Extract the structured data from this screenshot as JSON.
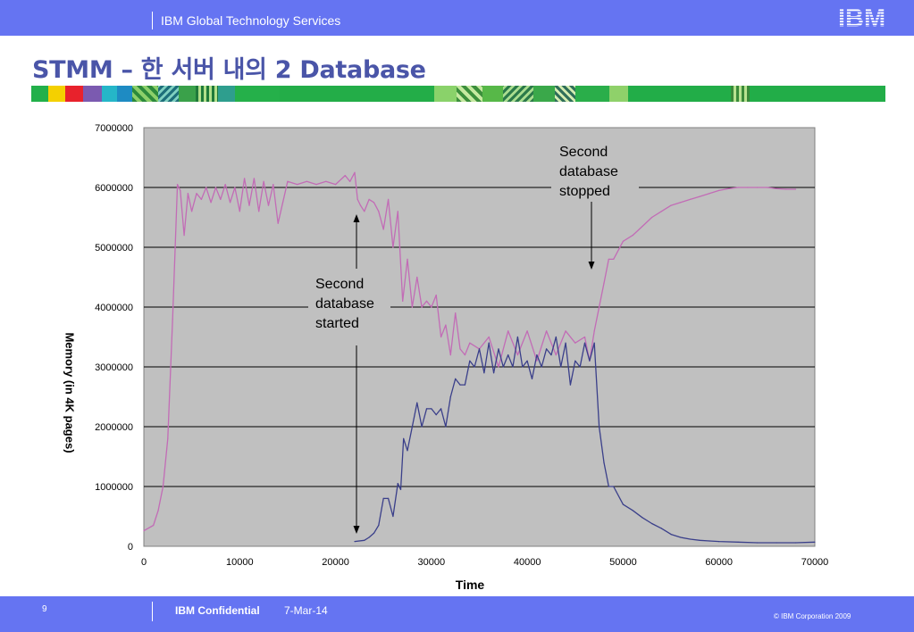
{
  "header": {
    "division": "IBM Global Technology Services",
    "logo_text": "IBM"
  },
  "slide": {
    "title": "STMM – 한 서버 내의 2 Database"
  },
  "footer": {
    "page_number": "9",
    "confidential": "IBM Confidential",
    "date": "7-Mar-14",
    "copyright": "© IBM Corporation 2009"
  },
  "colors": {
    "bar": "#6574f2",
    "title": "#4a55a8",
    "plot_bg": "#c0c0c0",
    "series1": "#c26cb6",
    "series2": "#3a3f8a"
  },
  "icons": {
    "logo": "ibm-logo-icon",
    "decorative_stripe": "color-stripe-icon"
  },
  "chart_data": {
    "type": "line",
    "xlabel": "Time",
    "ylabel": "Memory (in 4K pages)",
    "xlim": [
      0,
      70000
    ],
    "ylim": [
      0,
      7000000
    ],
    "xticks": [
      "0",
      "10000",
      "20000",
      "30000",
      "40000",
      "50000",
      "60000",
      "70000"
    ],
    "yticks": [
      "0",
      "1000000",
      "2000000",
      "3000000",
      "4000000",
      "5000000",
      "6000000",
      "7000000"
    ],
    "grid": "horizontal",
    "legend": "none",
    "series": [
      {
        "x": [
          0,
          1000,
          1500,
          2000,
          2500,
          3000,
          3500,
          3800,
          4200,
          4600,
          5000,
          5500,
          6000,
          6500,
          7000,
          7500,
          8000,
          8500,
          9000,
          9500,
          10000,
          10500,
          11000,
          11500,
          12000,
          12500,
          13000,
          13500,
          14000,
          15000,
          16000,
          17000,
          18000,
          19000,
          20000,
          21000,
          21500,
          22000,
          22300,
          22600,
          23000,
          23500,
          24000,
          24500,
          25000,
          25500,
          26000,
          26500,
          27000,
          27500,
          28000,
          28500,
          29000,
          29500,
          30000,
          30500,
          31000,
          31500,
          32000,
          32500,
          33000,
          33500,
          34000,
          35000,
          36000,
          37000,
          38000,
          39000,
          40000,
          41000,
          42000,
          43000,
          44000,
          45000,
          46000,
          46500,
          47000,
          47500,
          48000,
          48500,
          49000,
          50000,
          51000,
          52000,
          53000,
          54000,
          55000,
          56000,
          57000,
          58000,
          59000,
          60000,
          61000,
          62000,
          63000,
          64000,
          65000,
          66000,
          67000,
          68000
        ],
        "values": [
          260000,
          350000,
          600000,
          1000000,
          1800000,
          3800000,
          6050000,
          5950000,
          5200000,
          5900000,
          5600000,
          5900000,
          5800000,
          6000000,
          5750000,
          6000000,
          5800000,
          6050000,
          5750000,
          6000000,
          5600000,
          6150000,
          5700000,
          6150000,
          5600000,
          6100000,
          5700000,
          6050000,
          5400000,
          6100000,
          6050000,
          6100000,
          6050000,
          6100000,
          6050000,
          6200000,
          6100000,
          6250000,
          5800000,
          5700000,
          5600000,
          5800000,
          5750000,
          5600000,
          5300000,
          5800000,
          5000000,
          5600000,
          4100000,
          4800000,
          4000000,
          4500000,
          4000000,
          4100000,
          4000000,
          4200000,
          3500000,
          3700000,
          3200000,
          3900000,
          3300000,
          3200000,
          3400000,
          3300000,
          3500000,
          3000000,
          3600000,
          3200000,
          3600000,
          3100000,
          3600000,
          3200000,
          3600000,
          3400000,
          3500000,
          3100000,
          3600000,
          4000000,
          4400000,
          4800000,
          4800000,
          5100000,
          5200000,
          5350000,
          5500000,
          5600000,
          5700000,
          5750000,
          5800000,
          5850000,
          5900000,
          5950000,
          5980000,
          6000000,
          6000000,
          6000000,
          6000000,
          5980000,
          5970000,
          5970000
        ]
      },
      {
        "x": [
          22000,
          23000,
          23500,
          24000,
          24500,
          25000,
          25500,
          26000,
          26500,
          26800,
          27100,
          27500,
          28000,
          28500,
          29000,
          29500,
          30000,
          30500,
          31000,
          31500,
          32000,
          32500,
          33000,
          33500,
          34000,
          34500,
          35000,
          35500,
          36000,
          36500,
          37000,
          37500,
          38000,
          38500,
          39000,
          39500,
          40000,
          40500,
          41000,
          41500,
          42000,
          42500,
          43000,
          43500,
          44000,
          44500,
          45000,
          45500,
          46000,
          46500,
          47000,
          47500,
          48000,
          48500,
          49000,
          50000,
          51000,
          52000,
          53000,
          54000,
          55000,
          56000,
          57000,
          58000,
          59000,
          60000,
          62000,
          64000,
          66000,
          68000,
          70000
        ],
        "values": [
          80000,
          100000,
          150000,
          220000,
          350000,
          800000,
          800000,
          500000,
          1050000,
          950000,
          1800000,
          1600000,
          2000000,
          2400000,
          2000000,
          2300000,
          2300000,
          2200000,
          2300000,
          2000000,
          2500000,
          2800000,
          2700000,
          2700000,
          3100000,
          3000000,
          3300000,
          2900000,
          3400000,
          2900000,
          3300000,
          3000000,
          3200000,
          3000000,
          3500000,
          3000000,
          3100000,
          2800000,
          3200000,
          3000000,
          3300000,
          3200000,
          3500000,
          3000000,
          3400000,
          2700000,
          3100000,
          3000000,
          3400000,
          3100000,
          3400000,
          2000000,
          1400000,
          1000000,
          1000000,
          700000,
          600000,
          480000,
          380000,
          300000,
          200000,
          150000,
          120000,
          100000,
          90000,
          80000,
          70000,
          60000,
          60000,
          60000,
          70000
        ]
      }
    ],
    "annotations": [
      {
        "text": [
          "Second",
          "database",
          "started"
        ]
      },
      {
        "text": [
          "Second",
          "database",
          "stopped"
        ]
      }
    ]
  }
}
